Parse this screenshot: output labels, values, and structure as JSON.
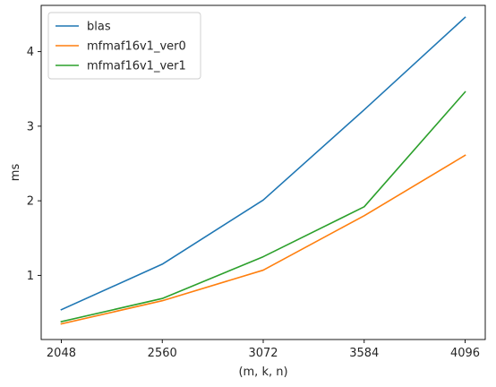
{
  "chart_data": {
    "type": "line",
    "title": "",
    "xlabel": "(m, k, n)",
    "ylabel": "ms",
    "categories": [
      "2048",
      "2560",
      "3072",
      "3584",
      "4096"
    ],
    "x": [
      2048,
      2560,
      3072,
      3584,
      4096
    ],
    "xlim": [
      1946,
      4198
    ],
    "ylim": [
      0.14,
      4.62
    ],
    "yticks": [
      1,
      2,
      3,
      4
    ],
    "grid": false,
    "legend_position": "top-left",
    "series": [
      {
        "name": "blas",
        "color": "#1f77b4",
        "values": [
          0.54,
          1.15,
          2.01,
          3.22,
          4.46
        ]
      },
      {
        "name": "mfmaf16v1_ver0",
        "color": "#ff7f0e",
        "values": [
          0.35,
          0.66,
          1.07,
          1.8,
          2.61
        ]
      },
      {
        "name": "mfmaf16v1_ver1",
        "color": "#2ca02c",
        "values": [
          0.38,
          0.69,
          1.25,
          1.92,
          3.46
        ]
      }
    ]
  }
}
